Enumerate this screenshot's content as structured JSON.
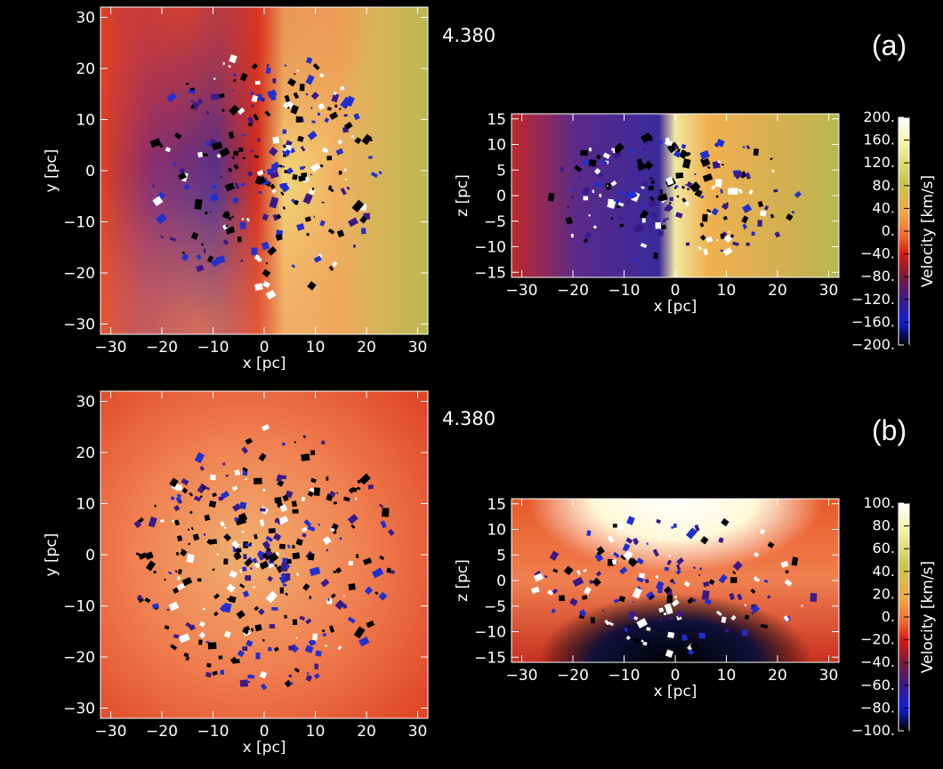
{
  "figure": {
    "panels": [
      {
        "label": "(a)",
        "time": "4.380",
        "xy": {
          "xlabel": "x [pc]",
          "ylabel": "y [pc]",
          "xlim": [
            -32,
            32
          ],
          "ylim": [
            -32,
            32
          ],
          "xticks": [
            "−30",
            "−20",
            "−10",
            "0",
            "10",
            "20",
            "30"
          ],
          "yticks": [
            "−30",
            "−20",
            "−10",
            "0",
            "10",
            "20",
            "30"
          ],
          "colormap": "velocity-red-dominant"
        },
        "xz": {
          "xlabel": "x [pc]",
          "ylabel": "z [pc]",
          "xlim": [
            -32,
            32
          ],
          "ylim": [
            -16,
            16
          ],
          "xticks": [
            "−30",
            "−20",
            "−10",
            "0",
            "10",
            "20",
            "30"
          ],
          "yticks": [
            "−15",
            "−10",
            "−5",
            "0",
            "5",
            "10",
            "15"
          ]
        },
        "colorbar": {
          "label": "Velocity [km/s]",
          "range": [
            -200,
            200
          ],
          "ticks": [
            "200.",
            "160.",
            "120.",
            "80.",
            "40.",
            "0.",
            "−40.",
            "−80.",
            "−120.",
            "−160.",
            "−200."
          ]
        }
      },
      {
        "label": "(b)",
        "time": "4.380",
        "xy": {
          "xlabel": "x [pc]",
          "ylabel": "y [pc]",
          "xlim": [
            -32,
            32
          ],
          "ylim": [
            -32,
            32
          ],
          "xticks": [
            "−30",
            "−20",
            "−10",
            "0",
            "10",
            "20",
            "30"
          ],
          "yticks": [
            "−30",
            "−20",
            "−10",
            "0",
            "10",
            "20",
            "30"
          ]
        },
        "xz": {
          "xlabel": "x [pc]",
          "ylabel": "z [pc]",
          "xlim": [
            -32,
            32
          ],
          "ylim": [
            -16,
            16
          ],
          "xticks": [
            "−30",
            "−20",
            "−10",
            "0",
            "10",
            "20",
            "30"
          ],
          "yticks": [
            "−15",
            "−10",
            "−5",
            "0",
            "5",
            "10",
            "15"
          ]
        },
        "colorbar": {
          "label": "Velocity [km/s]",
          "range": [
            -100,
            100
          ],
          "ticks": [
            "100.",
            "80.",
            "60.",
            "40.",
            "20.",
            "0.",
            "−20.",
            "−40.",
            "−60.",
            "−80.",
            "−100."
          ]
        }
      }
    ],
    "colors": {
      "background": "#000000",
      "colormap_stops": [
        "#ffffff",
        "#eef07a",
        "#c9c64a",
        "#f0b050",
        "#f07030",
        "#d81a10",
        "#7a1a3a",
        "#3a1a8a",
        "#1020d0",
        "#000000"
      ]
    }
  },
  "chart_data": [
    {
      "type": "heatmap",
      "panel": "(a) x-y projection",
      "quantity": "Velocity [km/s]",
      "xlabel": "x [pc]",
      "ylabel": "y [pc]",
      "xlim": [
        -32,
        32
      ],
      "ylim": [
        -32,
        32
      ],
      "value_range": [
        -200,
        200
      ],
      "grid": false
    },
    {
      "type": "heatmap",
      "panel": "(a) x-z projection",
      "quantity": "Velocity [km/s]",
      "xlabel": "x [pc]",
      "ylabel": "z [pc]",
      "xlim": [
        -32,
        32
      ],
      "ylim": [
        -16,
        16
      ],
      "value_range": [
        -200,
        200
      ],
      "grid": false
    },
    {
      "type": "heatmap",
      "panel": "(b) x-y projection",
      "quantity": "Velocity [km/s]",
      "xlabel": "x [pc]",
      "ylabel": "y [pc]",
      "xlim": [
        -32,
        32
      ],
      "ylim": [
        -32,
        32
      ],
      "value_range": [
        -100,
        100
      ],
      "grid": false
    },
    {
      "type": "heatmap",
      "panel": "(b) x-z projection",
      "quantity": "Velocity [km/s]",
      "xlabel": "x [pc]",
      "ylabel": "z [pc]",
      "xlim": [
        -32,
        32
      ],
      "ylim": [
        -16,
        16
      ],
      "value_range": [
        -100,
        100
      ],
      "grid": false
    }
  ]
}
